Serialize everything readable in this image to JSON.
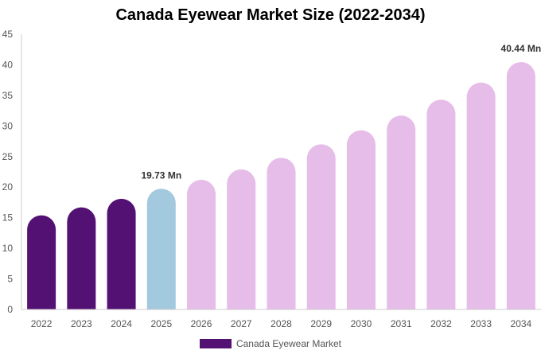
{
  "chart_data": {
    "type": "bar",
    "title": "Canada Eyewear Market Size (2022-2034)",
    "categories": [
      "2022",
      "2023",
      "2024",
      "2025",
      "2026",
      "2027",
      "2028",
      "2029",
      "2030",
      "2031",
      "2032",
      "2033",
      "2034"
    ],
    "series": [
      {
        "name": "Canada Eyewear Market",
        "values": [
          15.4,
          16.7,
          18.1,
          19.73,
          21.2,
          22.9,
          24.8,
          27.0,
          29.3,
          31.7,
          34.3,
          37.1,
          40.44
        ]
      }
    ],
    "ylim": [
      0,
      45
    ],
    "yticks": [
      0,
      5,
      10,
      15,
      20,
      25,
      30,
      35,
      40,
      45
    ],
    "grid": false,
    "legend": "bottom",
    "data_labels": [
      {
        "index": 3,
        "text": "19.73 Mn"
      },
      {
        "index": 12,
        "text": "40.44 Mn"
      }
    ],
    "colors": {
      "historical": "#541174",
      "current": "#a3c9de",
      "forecast": "#e6bde9",
      "axis": "#cccccc",
      "tick_text": "#555555"
    },
    "color_groups": [
      "historical",
      "historical",
      "historical",
      "current",
      "forecast",
      "forecast",
      "forecast",
      "forecast",
      "forecast",
      "forecast",
      "forecast",
      "forecast",
      "forecast"
    ]
  }
}
